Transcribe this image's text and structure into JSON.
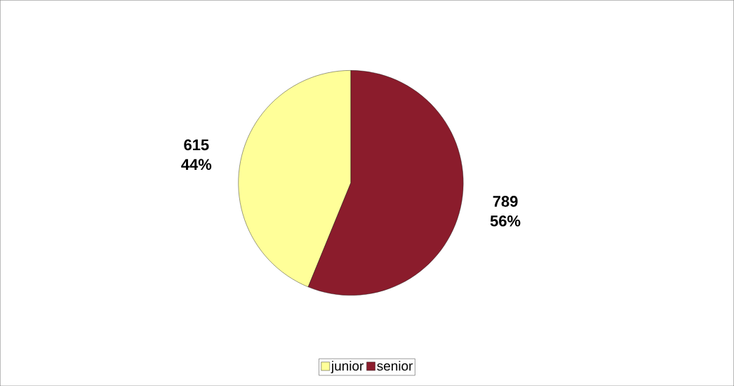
{
  "chart_data": {
    "type": "pie",
    "categories": [
      "junior",
      "senior"
    ],
    "values": [
      615,
      789
    ],
    "colors": [
      "#ffff99",
      "#8b1c2c"
    ],
    "value_labels": [
      "615 44%",
      "789 56%"
    ],
    "legend": "bottom"
  }
}
